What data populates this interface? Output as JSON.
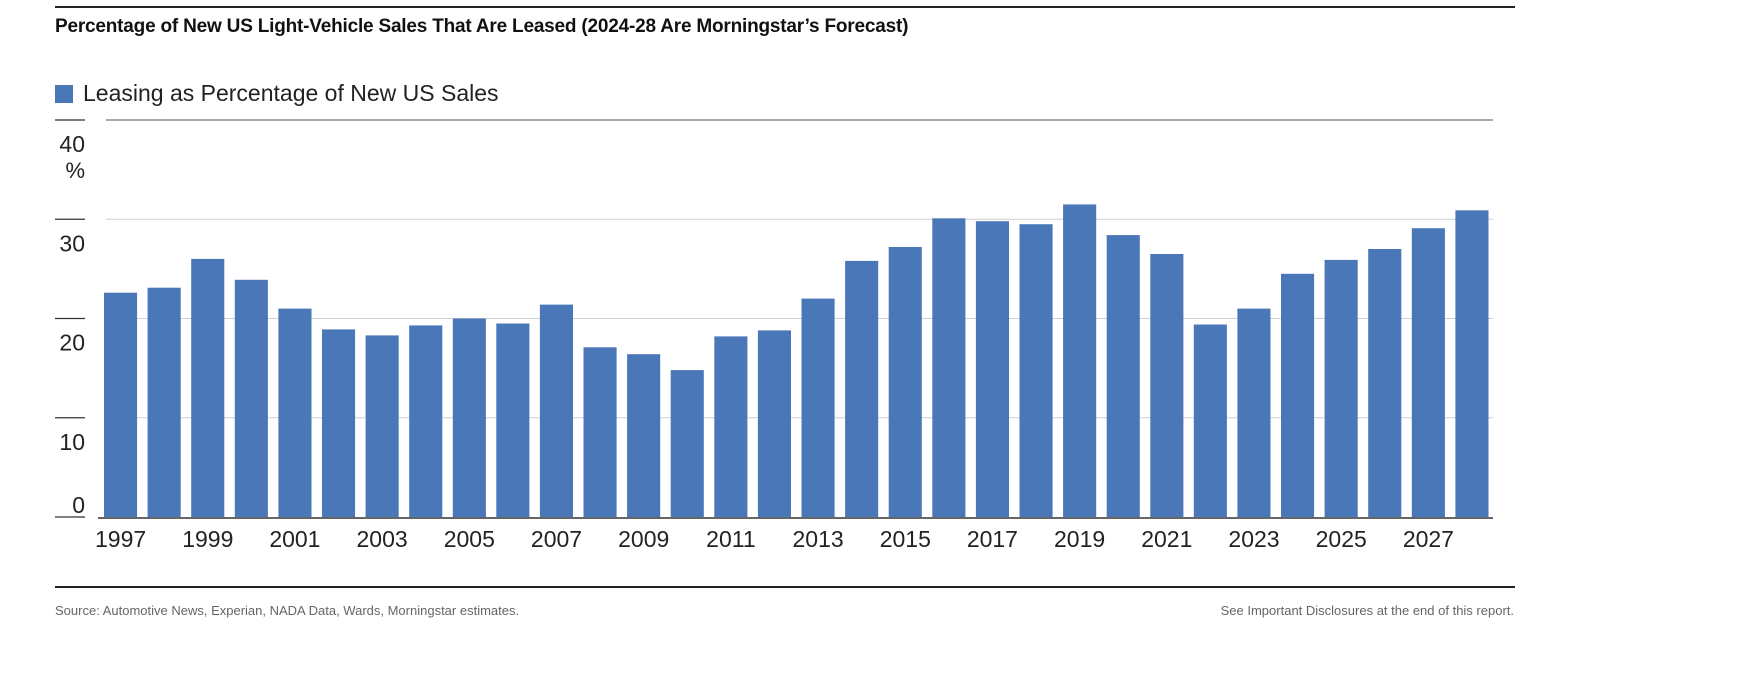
{
  "title": "Percentage of New US Light-Vehicle Sales That Are Leased (2024-28 Are Morningstar’s Forecast)",
  "footer": {
    "source": "Source: Automotive News, Experian, NADA Data, Wards, Morningstar estimates.",
    "disclosure": "See Important Disclosures at the end of this report."
  },
  "chart_data": {
    "type": "bar",
    "title": "Percentage of New US Light-Vehicle Sales That Are Leased (2024-28 Are Morningstar’s Forecast)",
    "ylabel_unit": "%",
    "ylim": [
      0,
      40
    ],
    "yticks": [
      0,
      10,
      20,
      30,
      40
    ],
    "grid": true,
    "legend_position": "top-left",
    "color": "#4a77b8",
    "series": [
      {
        "name": "Leasing as Percentage of New US Sales",
        "values": [
          22.6,
          23.1,
          26.0,
          23.9,
          21.0,
          18.9,
          18.3,
          19.3,
          20.0,
          19.5,
          21.4,
          17.1,
          16.4,
          14.8,
          18.2,
          18.8,
          22.0,
          25.8,
          27.2,
          30.1,
          29.8,
          29.5,
          31.5,
          28.4,
          26.5,
          19.4,
          21.0,
          24.5,
          25.9,
          27.0,
          29.1,
          30.9
        ]
      }
    ],
    "categories": [
      "1997",
      "1998",
      "1999",
      "2000",
      "2001",
      "2002",
      "2003",
      "2004",
      "2005",
      "2006",
      "2007",
      "2008",
      "2009",
      "2010",
      "2011",
      "2012",
      "2013",
      "2014",
      "2015",
      "2016",
      "2017",
      "2018",
      "2019",
      "2020",
      "2021",
      "2022",
      "2023",
      "2024",
      "2025",
      "2026",
      "2027",
      "2028"
    ],
    "xtick_labels": [
      "1997",
      "1999",
      "2001",
      "2003",
      "2005",
      "2007",
      "2009",
      "2011",
      "2013",
      "2015",
      "2017",
      "2019",
      "2021",
      "2023",
      "2025",
      "2027"
    ]
  }
}
